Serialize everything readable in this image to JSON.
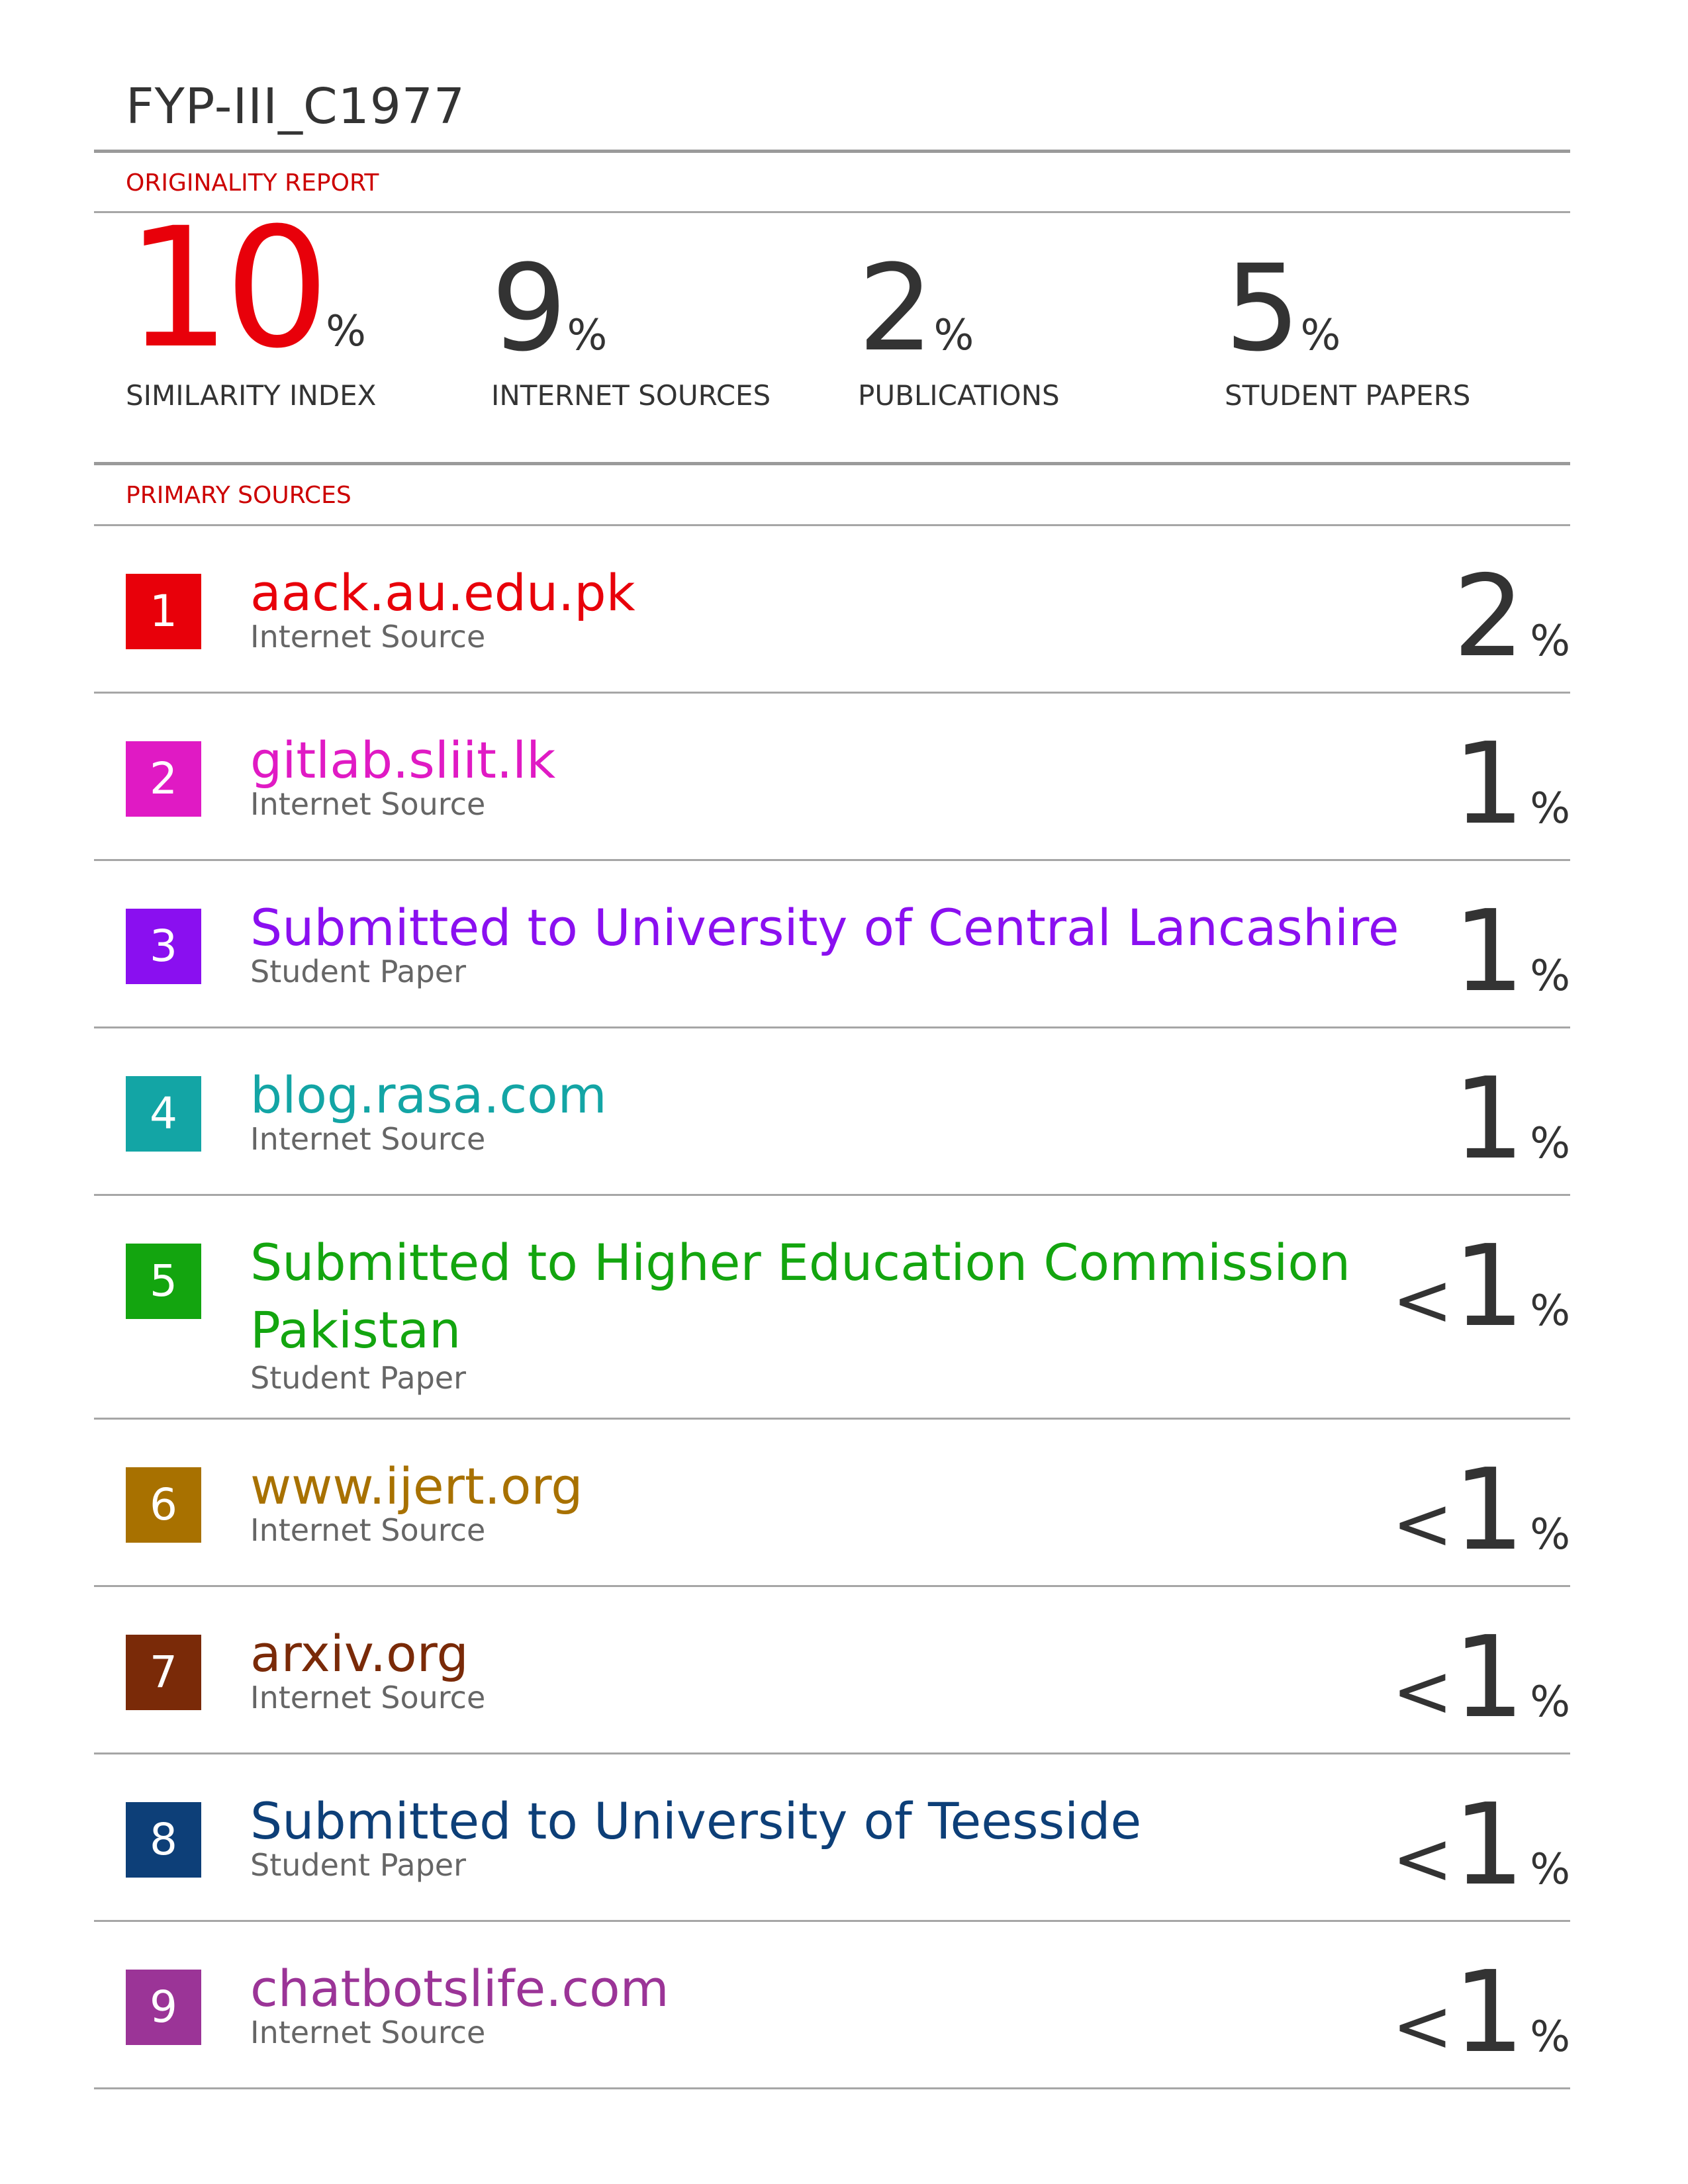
{
  "report": {
    "title": "FYP-III_C1977",
    "originality_label": "ORIGINALITY REPORT",
    "primary_label": "PRIMARY SOURCES"
  },
  "stats": [
    {
      "value": "10",
      "percent": "%",
      "label": "SIMILARITY INDEX",
      "color": "#e8000a"
    },
    {
      "value": "9",
      "percent": "%",
      "label": "INTERNET SOURCES",
      "color": "#333333"
    },
    {
      "value": "2",
      "percent": "%",
      "label": "PUBLICATIONS",
      "color": "#333333"
    },
    {
      "value": "5",
      "percent": "%",
      "label": "STUDENT PAPERS",
      "color": "#333333"
    }
  ],
  "sources": [
    {
      "rank": "1",
      "name": "aack.au.edu.pk",
      "type": "Internet Source",
      "prefix": "",
      "value": "2",
      "percent": "%",
      "color": "#e8000a"
    },
    {
      "rank": "2",
      "name": "gitlab.sliit.lk",
      "type": "Internet Source",
      "prefix": "",
      "value": "1",
      "percent": "%",
      "color": "#e01ac4"
    },
    {
      "rank": "3",
      "name": "Submitted to University of Central Lancashire",
      "type": "Student Paper",
      "prefix": "",
      "value": "1",
      "percent": "%",
      "color": "#8a0ff0"
    },
    {
      "rank": "4",
      "name": "blog.rasa.com",
      "type": "Internet Source",
      "prefix": "",
      "value": "1",
      "percent": "%",
      "color": "#13a5a5"
    },
    {
      "rank": "5",
      "name": "Submitted to Higher Education Commission Pakistan",
      "type": "Student Paper",
      "prefix": "<",
      "value": "1",
      "percent": "%",
      "color": "#13a50f"
    },
    {
      "rank": "6",
      "name": "www.ijert.org",
      "type": "Internet Source",
      "prefix": "<",
      "value": "1",
      "percent": "%",
      "color": "#a87100"
    },
    {
      "rank": "7",
      "name": "arxiv.org",
      "type": "Internet Source",
      "prefix": "<",
      "value": "1",
      "percent": "%",
      "color": "#7a2a08"
    },
    {
      "rank": "8",
      "name": "Submitted to University of Teesside",
      "type": "Student Paper",
      "prefix": "<",
      "value": "1",
      "percent": "%",
      "color": "#0d3f78"
    },
    {
      "rank": "9",
      "name": "chatbotslife.com",
      "type": "Internet Source",
      "prefix": "<",
      "value": "1",
      "percent": "%",
      "color": "#9b3497"
    }
  ]
}
